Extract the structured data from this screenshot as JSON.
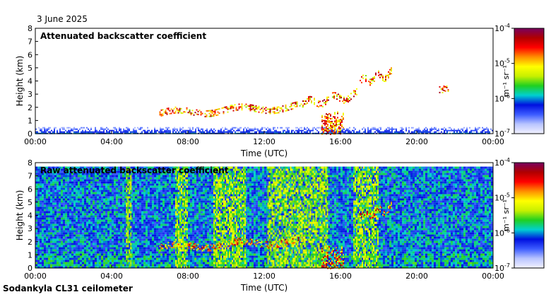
{
  "date": "3 June 2025",
  "footer": "Sodankyla CL31 ceilometer",
  "colormap": {
    "stops": [
      "#f2f2ff",
      "#b8c4ff",
      "#3c5cff",
      "#0010e0",
      "#00d0d0",
      "#20d020",
      "#c8f000",
      "#ffff00",
      "#ff9000",
      "#ff0000",
      "#b00000",
      "#780060"
    ]
  },
  "chart_data": [
    {
      "type": "heatmap",
      "title": "Attenuated backscatter coefficient",
      "xlabel": "Time (UTC)",
      "ylabel": "Height (km)",
      "xlim": [
        "00:00",
        "24:00"
      ],
      "ylim": [
        0,
        8
      ],
      "x_ticks": [
        "00:00",
        "04:00",
        "08:00",
        "12:00",
        "16:00",
        "20:00",
        "00:00"
      ],
      "y_ticks": [
        "0",
        "1",
        "2",
        "3",
        "4",
        "5",
        "6",
        "7",
        "8"
      ],
      "colorbar": {
        "label": "m⁻¹ sr⁻¹",
        "scale": "log",
        "range": [
          "1e-7",
          "1e-4"
        ],
        "ticks": [
          {
            "base": "10",
            "exp": "-4"
          },
          {
            "base": "10",
            "exp": "-5"
          },
          {
            "base": "10",
            "exp": "-6"
          },
          {
            "base": "10",
            "exp": "-7"
          }
        ]
      },
      "features": [
        {
          "kind": "surface-layer",
          "time_range": [
            "00:00",
            "24:00"
          ],
          "height_km": [
            0,
            0.5
          ]
        },
        {
          "kind": "cloud-layer",
          "time_range": [
            "06:30",
            "14:00"
          ],
          "height_km": [
            1.2,
            2.5
          ]
        },
        {
          "kind": "cloud-layer",
          "time_range": [
            "14:00",
            "16:50"
          ],
          "height_km": [
            1.8,
            3.5
          ]
        },
        {
          "kind": "precipitation",
          "time_range": [
            "15:00",
            "16:10"
          ],
          "height_km": [
            0,
            1.8
          ]
        },
        {
          "kind": "cloud-layer",
          "time_range": [
            "17:00",
            "18:40"
          ],
          "height_km": [
            3.5,
            5.1
          ]
        },
        {
          "kind": "cloud-layer",
          "time_range": [
            "21:10",
            "21:40"
          ],
          "height_km": [
            3.3,
            3.6
          ]
        }
      ]
    },
    {
      "type": "heatmap",
      "title": "Raw attenuated backscatter coefficient",
      "xlabel": "Time (UTC)",
      "ylabel": "Height (km)",
      "xlim": [
        "00:00",
        "24:00"
      ],
      "ylim": [
        0,
        8
      ],
      "x_ticks": [
        "00:00",
        "04:00",
        "08:00",
        "12:00",
        "16:00",
        "20:00",
        "00:00"
      ],
      "y_ticks": [
        "0",
        "1",
        "2",
        "3",
        "4",
        "5",
        "6",
        "7",
        "8"
      ],
      "colorbar": {
        "label": "m⁻¹ sr⁻¹",
        "scale": "log",
        "range": [
          "1e-7",
          "1e-4"
        ],
        "ticks": [
          {
            "base": "10",
            "exp": "-4"
          },
          {
            "base": "10",
            "exp": "-5"
          },
          {
            "base": "10",
            "exp": "-6"
          },
          {
            "base": "10",
            "exp": "-7"
          }
        ]
      },
      "features": [
        {
          "kind": "noise-field",
          "time_range": [
            "00:00",
            "24:00"
          ],
          "height_km": [
            0,
            7.7
          ]
        },
        {
          "kind": "enhanced-noise",
          "time_range": [
            "04:45",
            "05:00"
          ],
          "height_km": [
            0,
            7.7
          ]
        },
        {
          "kind": "enhanced-noise",
          "time_range": [
            "07:20",
            "08:00"
          ],
          "height_km": [
            0,
            7.7
          ]
        },
        {
          "kind": "enhanced-noise",
          "time_range": [
            "09:20",
            "11:00"
          ],
          "height_km": [
            0,
            7.7
          ]
        },
        {
          "kind": "enhanced-noise",
          "time_range": [
            "12:10",
            "15:20"
          ],
          "height_km": [
            0,
            7.7
          ]
        },
        {
          "kind": "enhanced-noise",
          "time_range": [
            "16:40",
            "18:00"
          ],
          "height_km": [
            0,
            7.7
          ]
        },
        {
          "kind": "cloud-layer",
          "time_range": [
            "06:30",
            "14:00"
          ],
          "height_km": [
            1.2,
            2.5
          ]
        },
        {
          "kind": "precipitation",
          "time_range": [
            "15:00",
            "16:10"
          ],
          "height_km": [
            0,
            1.8
          ]
        },
        {
          "kind": "cloud-layer",
          "time_range": [
            "17:00",
            "18:40"
          ],
          "height_km": [
            3.5,
            5.1
          ]
        }
      ]
    }
  ]
}
